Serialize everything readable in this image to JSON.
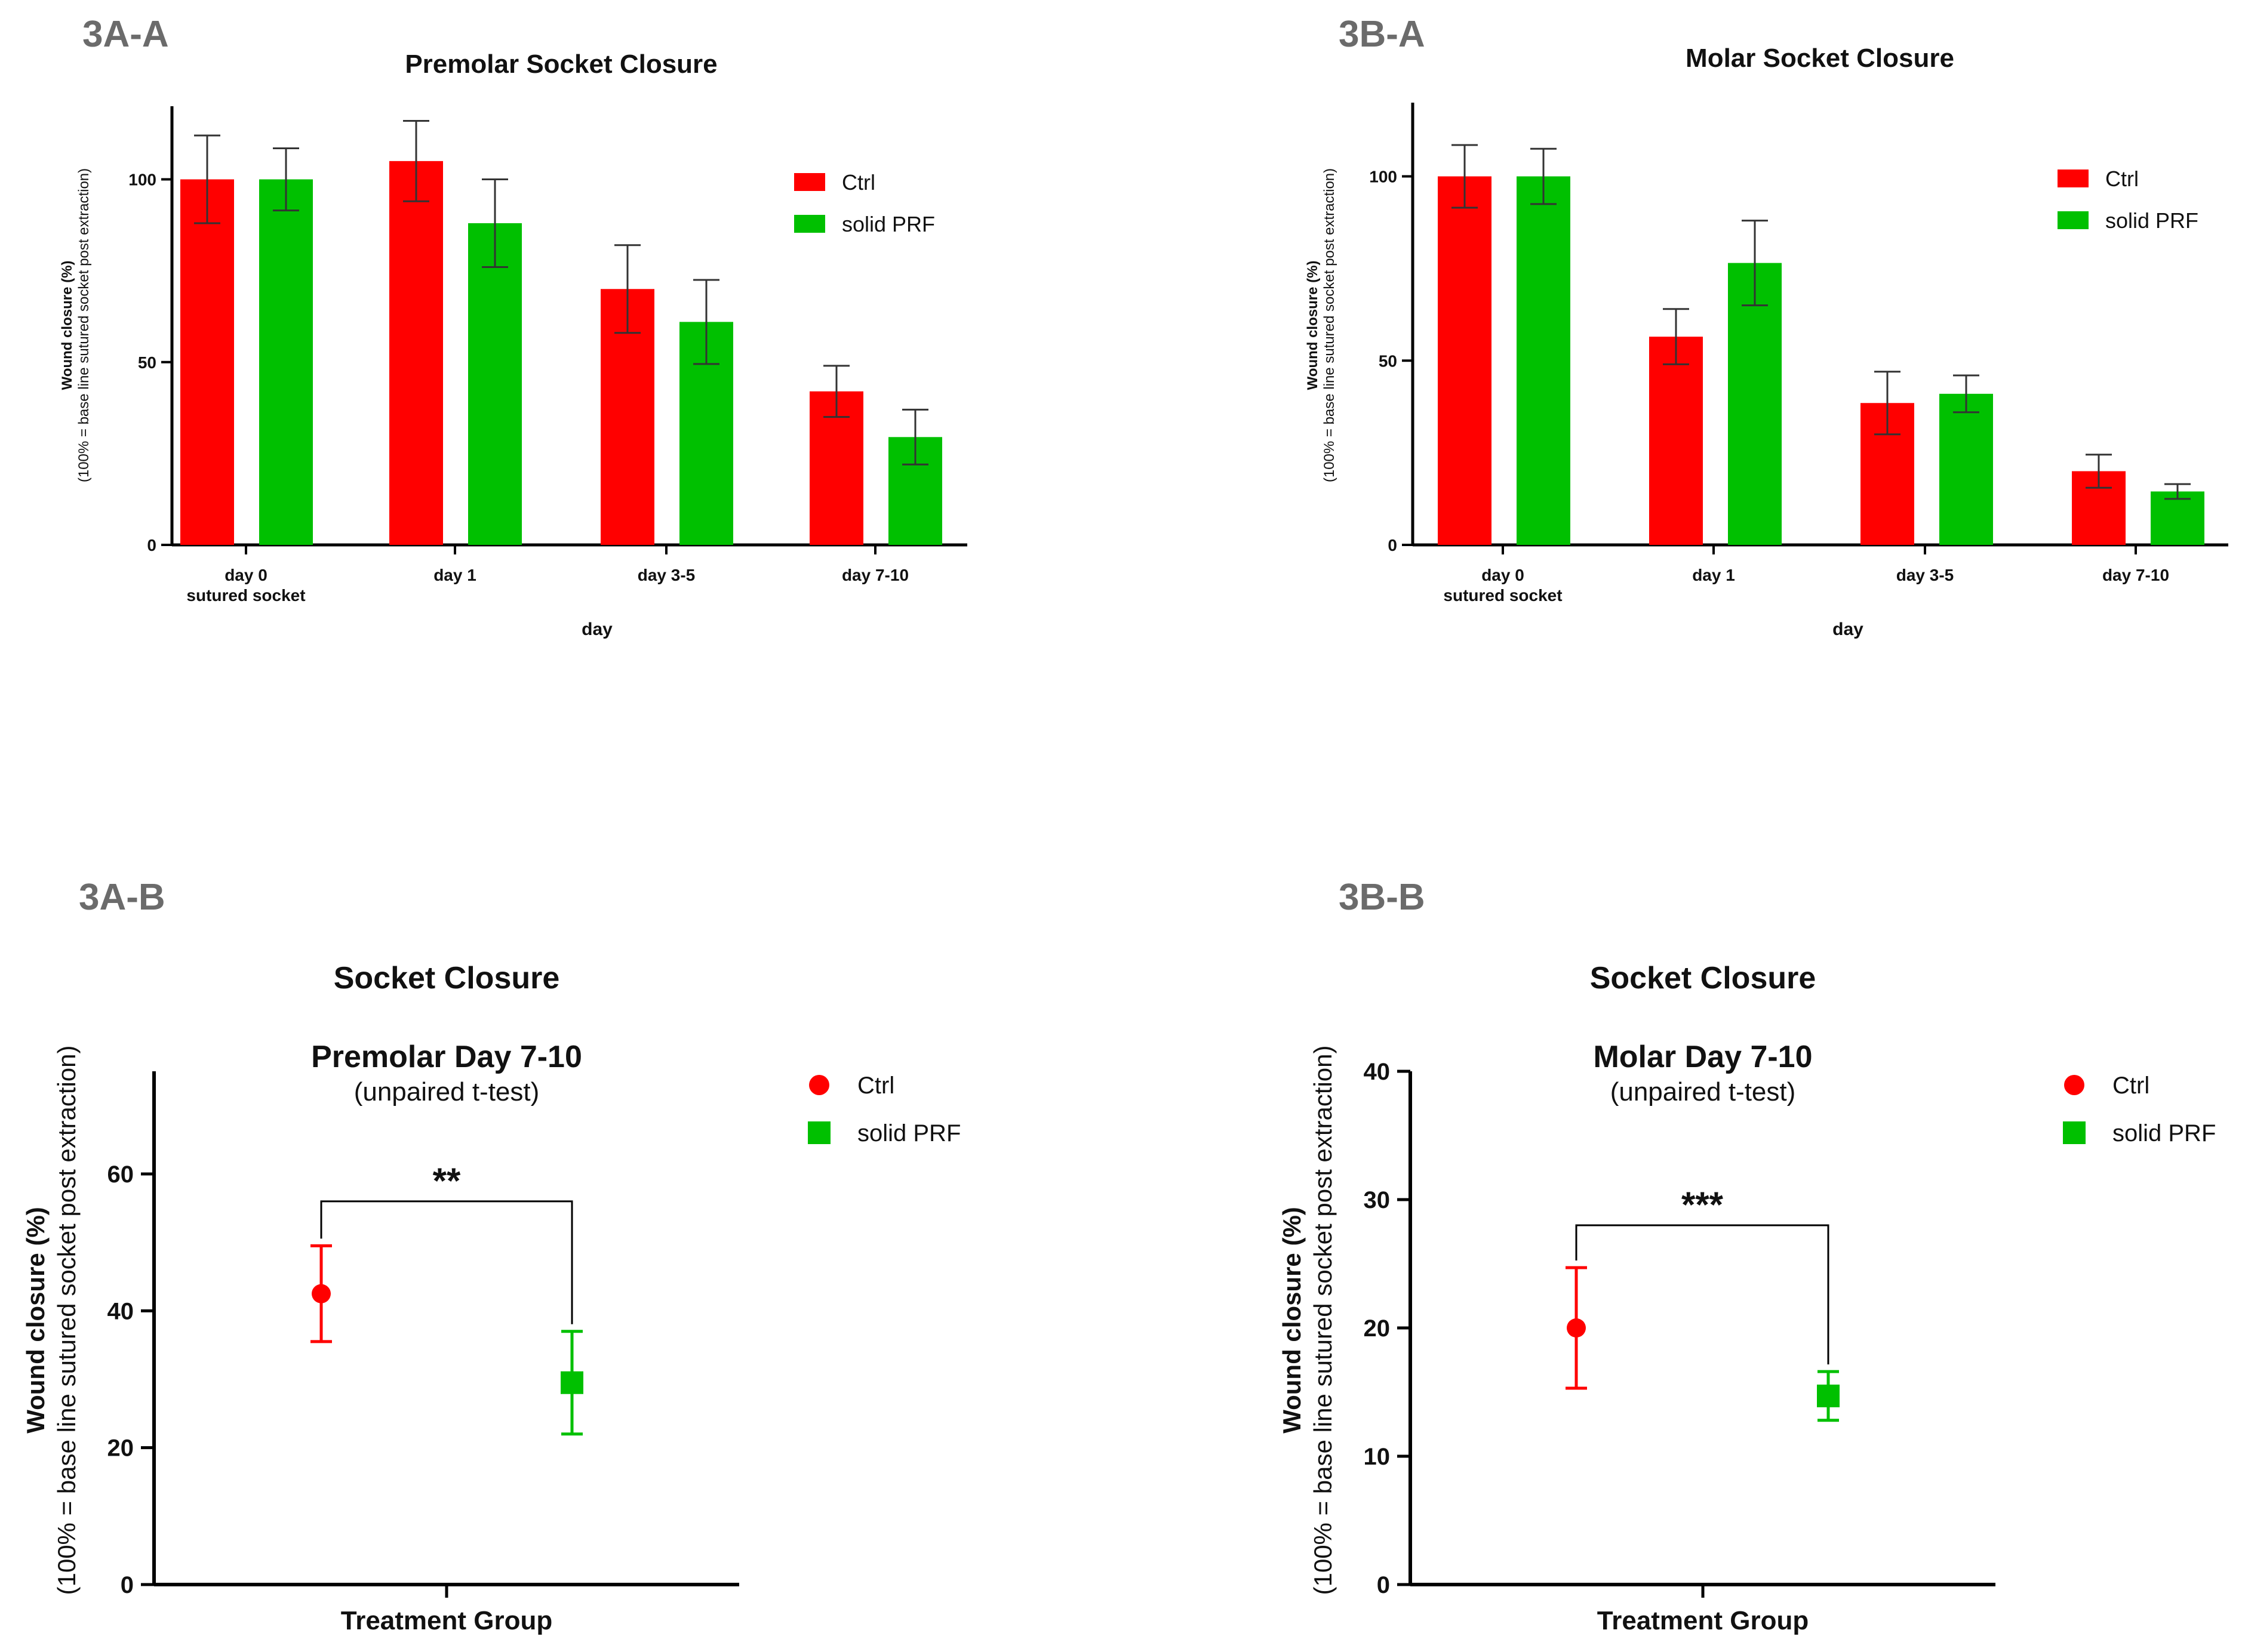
{
  "colors": {
    "ctrl": "#ff0000",
    "prf": "#00c000",
    "axis": "#000000",
    "error_bar": "#333333",
    "panel_label": "#6b6b6b"
  },
  "panels": {
    "a_a": {
      "label": "3A-A"
    },
    "b_a": {
      "label": "3B-A"
    },
    "a_b": {
      "label": "3A-B",
      "heading": "Socket Closure"
    },
    "b_b": {
      "label": "3B-B",
      "heading": "Socket Closure"
    }
  },
  "chart_data": [
    {
      "type": "bar",
      "title": "Premolar Socket Closure",
      "xlabel": "day",
      "ylabel": [
        "Wound closure (%)",
        "(100% = base line sutured socket post extraction)"
      ],
      "ylim": [
        0,
        120
      ],
      "yticks": [
        0,
        50,
        100
      ],
      "categories": [
        [
          "day 0",
          "sutured socket"
        ],
        [
          "day 1"
        ],
        [
          "day 3-5"
        ],
        [
          "day 7-10"
        ]
      ],
      "series": [
        {
          "name": "Ctrl",
          "values": [
            100,
            105,
            70,
            42
          ],
          "errors": [
            12,
            11,
            12,
            7
          ]
        },
        {
          "name": "solid PRF",
          "values": [
            100,
            88,
            61,
            29.5
          ],
          "errors": [
            8.5,
            12,
            11.5,
            7.5
          ]
        }
      ],
      "legend": "top-right",
      "grid": false
    },
    {
      "type": "bar",
      "title": "Molar Socket Closure",
      "xlabel": "day",
      "ylabel": [
        "Wound closure (%)",
        "(100% = base line sutured socket post extraction)"
      ],
      "ylim": [
        0,
        120
      ],
      "yticks": [
        0,
        50,
        100
      ],
      "categories": [
        [
          "day 0",
          "sutured socket"
        ],
        [
          "day 1"
        ],
        [
          "day 3-5"
        ],
        [
          "day 7-10"
        ]
      ],
      "series": [
        {
          "name": "Ctrl",
          "values": [
            100,
            56.5,
            38.5,
            20
          ],
          "errors": [
            8.5,
            7.5,
            8.5,
            4.5
          ]
        },
        {
          "name": "solid PRF",
          "values": [
            100,
            76.5,
            41,
            14.5
          ],
          "errors": [
            7.5,
            11.5,
            5,
            2
          ]
        }
      ],
      "legend": "top-right",
      "grid": false
    },
    {
      "type": "scatter",
      "title": "Premolar Day 7-10",
      "subtitle": "(unpaired t-test)",
      "xlabel": "Treatment Group",
      "ylabel": [
        "Wound closure (%)",
        "(100% = base line sutured socket post extraction)"
      ],
      "ylim": [
        0,
        75
      ],
      "yticks": [
        0,
        20,
        40,
        60
      ],
      "series": [
        {
          "name": "Ctrl",
          "marker": "circle",
          "value": 42.5,
          "error": 7
        },
        {
          "name": "solid PRF",
          "marker": "square",
          "value": 29.5,
          "error": 7.5
        }
      ],
      "significance": {
        "label": "**",
        "level": 56
      },
      "legend": "top-right",
      "grid": false
    },
    {
      "type": "scatter",
      "title": "Molar Day 7-10",
      "subtitle": "(unpaired t-test)",
      "xlabel": "Treatment Group",
      "ylabel": [
        "Wound closure (%)",
        "(100% = base line sutured socket post extraction)"
      ],
      "ylim": [
        0,
        40
      ],
      "yticks": [
        0,
        10,
        20,
        30,
        40
      ],
      "series": [
        {
          "name": "Ctrl",
          "marker": "circle",
          "value": 20,
          "error": 4.7
        },
        {
          "name": "solid PRF",
          "marker": "square",
          "value": 14.7,
          "error": 1.9
        }
      ],
      "significance": {
        "label": "***",
        "level": 28
      },
      "legend": "top-right",
      "grid": false
    }
  ]
}
